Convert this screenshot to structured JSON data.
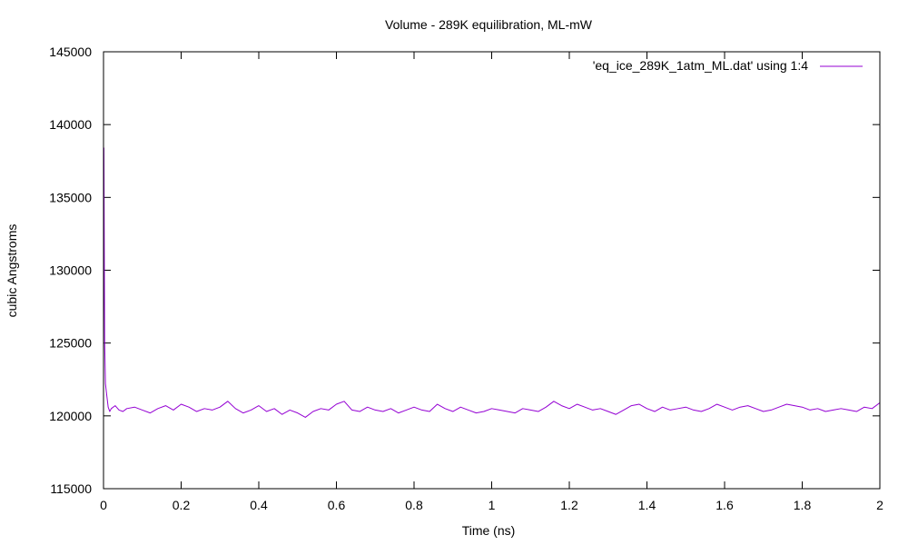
{
  "chart_data": {
    "type": "line",
    "title": "Volume - 289K equilibration, ML-mW",
    "xlabel": "Time (ns)",
    "ylabel": "cubic Angstroms",
    "xlim": [
      0,
      2
    ],
    "ylim": [
      115000,
      145000
    ],
    "x_ticks": [
      0,
      0.2,
      0.4,
      0.6,
      0.8,
      1,
      1.2,
      1.4,
      1.6,
      1.8,
      2
    ],
    "x_tick_labels": [
      "0",
      "0.2",
      "0.4",
      "0.6",
      "0.8",
      "1",
      "1.2",
      "1.4",
      "1.6",
      "1.8",
      "2"
    ],
    "y_ticks": [
      115000,
      120000,
      125000,
      130000,
      135000,
      140000,
      145000
    ],
    "y_tick_labels": [
      "115000",
      "120000",
      "125000",
      "130000",
      "135000",
      "140000",
      "145000"
    ],
    "grid": false,
    "legend_position": "top-right",
    "series": [
      {
        "name": "'eq_ice_289K_1atm_ML.dat' using 1:4",
        "color": "#9400d3",
        "x": [
          0,
          0.001,
          0.002,
          0.003,
          0.005,
          0.008,
          0.012,
          0.016,
          0.02,
          0.03,
          0.04,
          0.05,
          0.06,
          0.08,
          0.1,
          0.12,
          0.14,
          0.16,
          0.18,
          0.2,
          0.22,
          0.24,
          0.26,
          0.28,
          0.3,
          0.32,
          0.34,
          0.36,
          0.38,
          0.4,
          0.42,
          0.44,
          0.46,
          0.48,
          0.5,
          0.52,
          0.54,
          0.56,
          0.58,
          0.6,
          0.62,
          0.64,
          0.66,
          0.68,
          0.7,
          0.72,
          0.74,
          0.76,
          0.78,
          0.8,
          0.82,
          0.84,
          0.86,
          0.88,
          0.9,
          0.92,
          0.94,
          0.96,
          0.98,
          1,
          1.02,
          1.04,
          1.06,
          1.08,
          1.1,
          1.12,
          1.14,
          1.16,
          1.18,
          1.2,
          1.22,
          1.24,
          1.26,
          1.28,
          1.3,
          1.32,
          1.34,
          1.36,
          1.38,
          1.4,
          1.42,
          1.44,
          1.46,
          1.48,
          1.5,
          1.52,
          1.54,
          1.56,
          1.58,
          1.6,
          1.62,
          1.64,
          1.66,
          1.68,
          1.7,
          1.72,
          1.74,
          1.76,
          1.78,
          1.8,
          1.82,
          1.84,
          1.86,
          1.88,
          1.9,
          1.92,
          1.94,
          1.96,
          1.98,
          2
        ],
        "y": [
          124500,
          138400,
          131500,
          125000,
          122200,
          121500,
          120600,
          120300,
          120500,
          120700,
          120400,
          120300,
          120500,
          120600,
          120400,
          120200,
          120500,
          120700,
          120400,
          120800,
          120600,
          120300,
          120500,
          120400,
          120600,
          121000,
          120500,
          120200,
          120400,
          120700,
          120300,
          120500,
          120100,
          120400,
          120200,
          119900,
          120300,
          120500,
          120400,
          120800,
          121000,
          120400,
          120300,
          120600,
          120400,
          120300,
          120500,
          120200,
          120400,
          120600,
          120400,
          120300,
          120800,
          120500,
          120300,
          120600,
          120400,
          120200,
          120300,
          120500,
          120400,
          120300,
          120200,
          120500,
          120400,
          120300,
          120600,
          121000,
          120700,
          120500,
          120800,
          120600,
          120400,
          120500,
          120300,
          120100,
          120400,
          120700,
          120800,
          120500,
          120300,
          120600,
          120400,
          120500,
          120600,
          120400,
          120300,
          120500,
          120800,
          120600,
          120400,
          120600,
          120700,
          120500,
          120300,
          120400,
          120600,
          120800,
          120700,
          120600,
          120400,
          120500,
          120300,
          120400,
          120500,
          120400,
          120300,
          120600,
          120500,
          120900
        ]
      }
    ]
  }
}
